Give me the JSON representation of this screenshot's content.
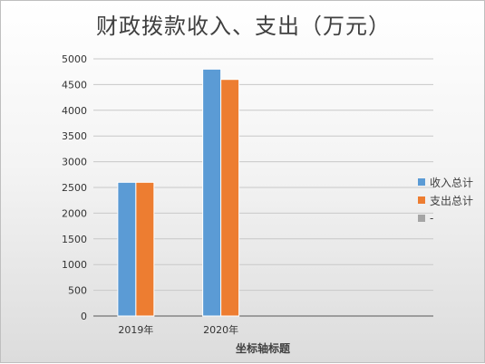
{
  "chart_data": {
    "type": "bar",
    "title": "财政拨款收入、支出（万元）",
    "xlabel": "坐标轴标题",
    "ylabel": "",
    "categories": [
      "2019年",
      "2020年",
      "",
      ""
    ],
    "series": [
      {
        "name": "收入总计",
        "color": "#5b9bd5",
        "values": [
          2600,
          4800,
          null,
          null
        ]
      },
      {
        "name": "支出总计",
        "color": "#ed7d31",
        "values": [
          2600,
          4600,
          null,
          null
        ]
      },
      {
        "name": "-",
        "color": "#a5a5a5",
        "values": [
          null,
          null,
          null,
          null
        ]
      }
    ],
    "ylim": [
      0,
      5000
    ],
    "yticks": [
      0,
      500,
      1000,
      1500,
      2000,
      2500,
      3000,
      3500,
      4000,
      4500,
      5000
    ],
    "grid": true,
    "legend_position": "right"
  }
}
